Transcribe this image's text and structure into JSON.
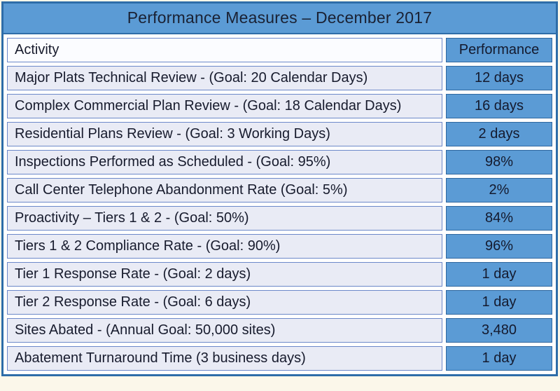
{
  "title": "Performance Measures – December 2017",
  "colors": {
    "title_blue": "#5b9bd5",
    "performance_cell_blue": "#5b9bd5",
    "outer_border_blue": "#2d6da8",
    "activity_cell_bg": "#e9ebf5",
    "activity_header_bg": "#fbfcff",
    "cell_border_light": "#6c88c9",
    "text_dark_navy": "#171b2d",
    "page_background": "#fbf7ea"
  },
  "table": {
    "columns": {
      "activity": "Activity",
      "performance": "Performance"
    },
    "rows": [
      {
        "activity": "Major Plats Technical Review - (Goal: 20 Calendar Days)",
        "performance": "12 days"
      },
      {
        "activity": "Complex Commercial Plan Review - (Goal: 18 Calendar Days)",
        "performance": "16 days"
      },
      {
        "activity": "Residential Plans Review - (Goal: 3 Working Days)",
        "performance": "2 days"
      },
      {
        "activity": "Inspections Performed as Scheduled - (Goal: 95%)",
        "performance": "98%"
      },
      {
        "activity": "Call Center Telephone Abandonment Rate (Goal: 5%)",
        "performance": "2%"
      },
      {
        "activity": "Proactivity – Tiers 1 & 2 - (Goal: 50%)",
        "performance": "84%"
      },
      {
        "activity": "Tiers 1 & 2 Compliance Rate - (Goal: 90%)",
        "performance": "96%"
      },
      {
        "activity": "Tier 1 Response Rate - (Goal: 2 days)",
        "performance": "1 day"
      },
      {
        "activity": "Tier 2 Response Rate - (Goal: 6 days)",
        "performance": "1 day"
      },
      {
        "activity": "Sites Abated - (Annual Goal: 50,000 sites)",
        "performance": "3,480"
      },
      {
        "activity": "Abatement Turnaround Time (3 business days)",
        "performance": "1 day"
      }
    ]
  }
}
